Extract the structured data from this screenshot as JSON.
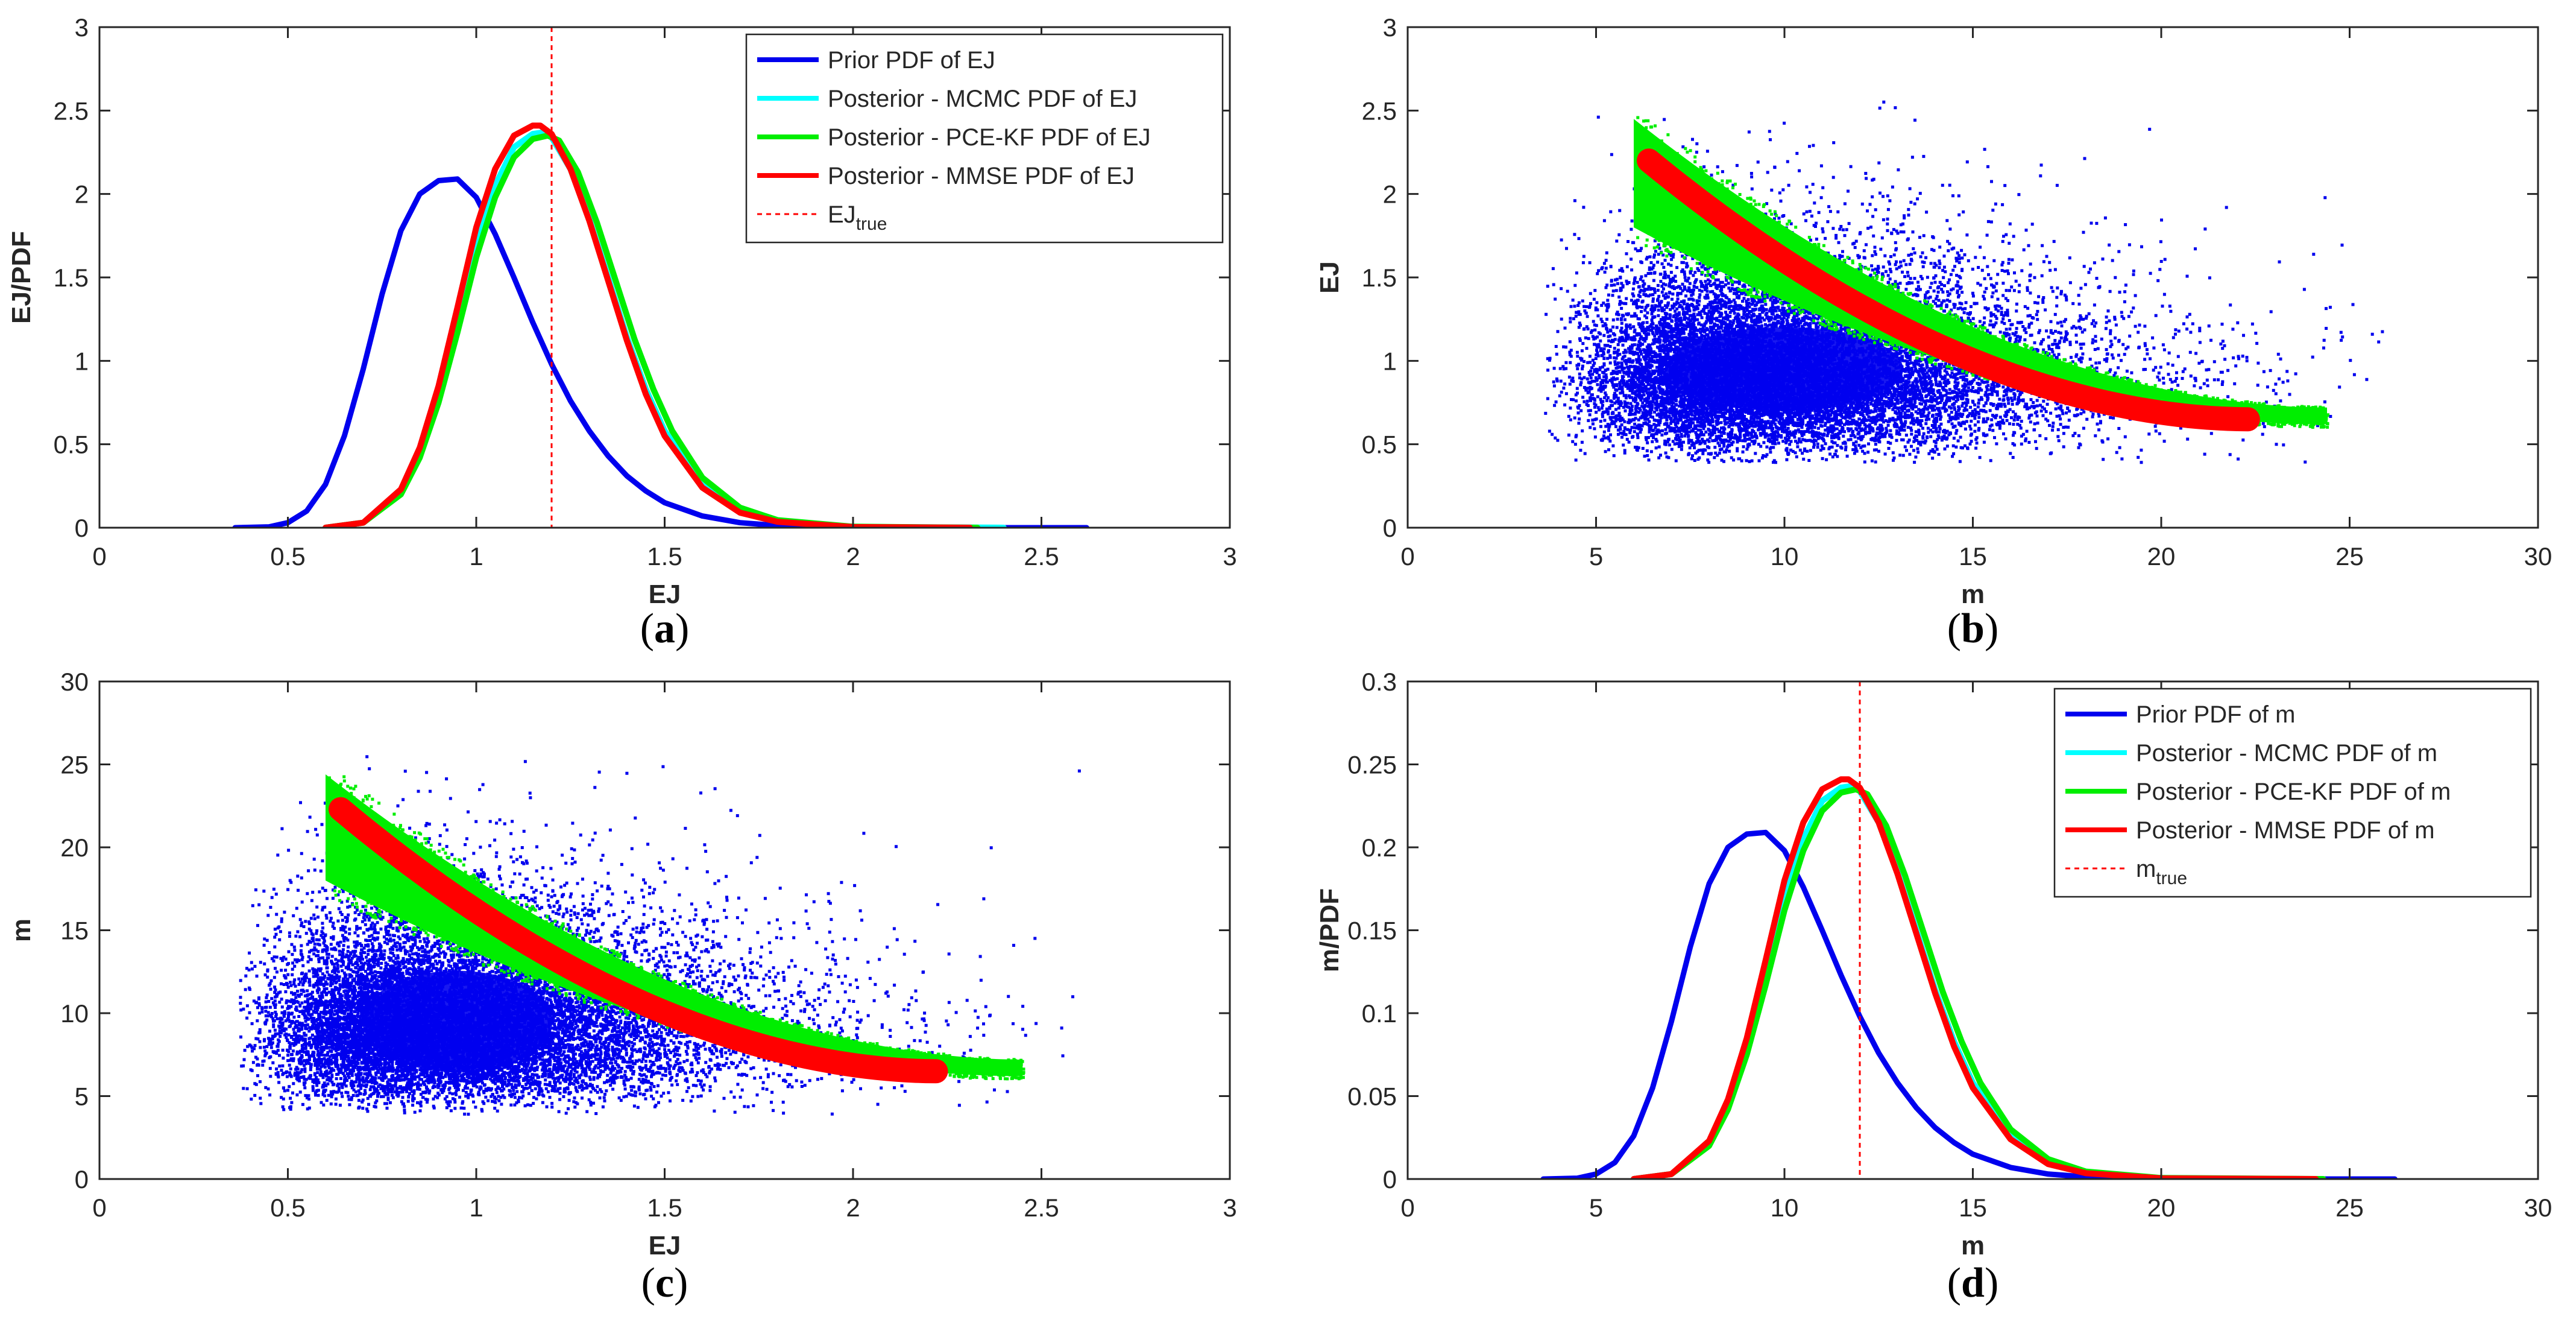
{
  "chart_data": [
    {
      "id": "a",
      "type": "line",
      "caption_letter": "a",
      "xlabel": "EJ",
      "ylabel": "EJ/PDF",
      "xlim": [
        0,
        3
      ],
      "ylim": [
        0,
        3
      ],
      "xticks": [
        "0",
        "0.5",
        "1",
        "1.5",
        "2",
        "2.5",
        "3"
      ],
      "yticks": [
        "0",
        "0.5",
        "1",
        "1.5",
        "2",
        "2.5",
        "3"
      ],
      "true_value": 1.2,
      "legend_position": "top-right",
      "legend": [
        {
          "label": "Prior PDF of EJ",
          "color": "#0000ee",
          "style": "solid"
        },
        {
          "label": "Posterior - MCMC PDF of EJ",
          "color": "#00ffff",
          "style": "solid"
        },
        {
          "label": "Posterior - PCE-KF PDF of EJ",
          "color": "#00ee00",
          "style": "solid"
        },
        {
          "label": "Posterior - MMSE PDF of EJ",
          "color": "#ff0000",
          "style": "solid"
        },
        {
          "label": "EJ",
          "sub": "true",
          "color": "#ff0000",
          "style": "dashed"
        }
      ],
      "series": [
        {
          "name": "Prior PDF of EJ",
          "color": "#0000ee",
          "x": [
            0.36,
            0.45,
            0.5,
            0.55,
            0.6,
            0.65,
            0.7,
            0.75,
            0.8,
            0.85,
            0.9,
            0.95,
            1.0,
            1.05,
            1.1,
            1.15,
            1.2,
            1.25,
            1.3,
            1.35,
            1.4,
            1.45,
            1.5,
            1.6,
            1.7,
            1.8,
            1.9,
            2.0,
            2.2,
            2.4,
            2.62
          ],
          "y": [
            0,
            0.005,
            0.03,
            0.1,
            0.26,
            0.55,
            0.95,
            1.4,
            1.78,
            2.0,
            2.08,
            2.09,
            1.98,
            1.76,
            1.5,
            1.23,
            0.98,
            0.76,
            0.58,
            0.43,
            0.31,
            0.22,
            0.15,
            0.07,
            0.03,
            0.013,
            0.006,
            0.003,
            0.001,
            0,
            0
          ]
        },
        {
          "name": "Posterior - MCMC PDF of EJ",
          "color": "#00ffff",
          "x": [
            0.6,
            0.7,
            0.8,
            0.85,
            0.9,
            0.95,
            1.0,
            1.05,
            1.1,
            1.15,
            1.18,
            1.2,
            1.25,
            1.3,
            1.35,
            1.4,
            1.45,
            1.5,
            1.6,
            1.7,
            1.8,
            2.0,
            2.4
          ],
          "y": [
            0,
            0.03,
            0.22,
            0.45,
            0.8,
            1.25,
            1.7,
            2.05,
            2.28,
            2.36,
            2.37,
            2.34,
            2.15,
            1.85,
            1.5,
            1.14,
            0.83,
            0.58,
            0.26,
            0.11,
            0.04,
            0.005,
            0
          ]
        },
        {
          "name": "Posterior - PCE-KF PDF of EJ",
          "color": "#00ee00",
          "x": [
            0.6,
            0.7,
            0.8,
            0.85,
            0.9,
            0.95,
            1.0,
            1.05,
            1.1,
            1.15,
            1.19,
            1.22,
            1.27,
            1.32,
            1.37,
            1.42,
            1.47,
            1.52,
            1.6,
            1.7,
            1.8,
            2.0,
            2.33
          ],
          "y": [
            0,
            0.03,
            0.2,
            0.42,
            0.75,
            1.17,
            1.62,
            1.98,
            2.22,
            2.33,
            2.35,
            2.32,
            2.13,
            1.83,
            1.48,
            1.13,
            0.83,
            0.58,
            0.3,
            0.12,
            0.045,
            0.006,
            0
          ]
        },
        {
          "name": "Posterior - MMSE PDF of EJ",
          "color": "#ff0000",
          "x": [
            0.6,
            0.7,
            0.8,
            0.85,
            0.9,
            0.95,
            1.0,
            1.05,
            1.1,
            1.15,
            1.17,
            1.2,
            1.25,
            1.3,
            1.35,
            1.4,
            1.45,
            1.5,
            1.6,
            1.7,
            1.8,
            2.0,
            2.31
          ],
          "y": [
            0,
            0.03,
            0.23,
            0.48,
            0.85,
            1.32,
            1.8,
            2.15,
            2.35,
            2.41,
            2.41,
            2.36,
            2.15,
            1.84,
            1.48,
            1.12,
            0.8,
            0.55,
            0.24,
            0.09,
            0.035,
            0.004,
            0
          ]
        }
      ]
    },
    {
      "id": "b",
      "type": "scatter",
      "caption_letter": "b",
      "xlabel": "m",
      "ylabel": "EJ",
      "xlim": [
        0,
        30
      ],
      "ylim": [
        0,
        3
      ],
      "xticks": [
        "0",
        "5",
        "10",
        "15",
        "20",
        "25",
        "30"
      ],
      "yticks": [
        "0",
        "0.5",
        "1",
        "1.5",
        "2",
        "2.5",
        "3"
      ],
      "series": [
        {
          "name": "Prior samples",
          "color": "#0000ee",
          "cloud_center": [
            10,
            0.95
          ],
          "cloud_spread": [
            3.5,
            0.28
          ],
          "extent_x": [
            3.6,
            26
          ],
          "extent_y": [
            0.4,
            2.6
          ]
        },
        {
          "name": "Posterior - PCE-KF samples",
          "color": "#00ee00",
          "band_x": [
            6.0,
            24.4
          ],
          "band_top_start": 2.45,
          "band_top_end": 0.72,
          "band_bottom_start": 1.8,
          "band_bottom_end": 0.62
        },
        {
          "name": "Posterior - MMSE samples",
          "color": "#ff0000",
          "curve_x": [
            6.4,
            22.3
          ],
          "curve_y_start": 2.2,
          "curve_y_end": 0.65
        }
      ]
    },
    {
      "id": "c",
      "type": "scatter",
      "caption_letter": "c",
      "xlabel": "EJ",
      "ylabel": "m",
      "xlim": [
        0,
        3
      ],
      "ylim": [
        0,
        30
      ],
      "xticks": [
        "0",
        "0.5",
        "1",
        "1.5",
        "2",
        "2.5",
        "3"
      ],
      "yticks": [
        "0",
        "5",
        "10",
        "15",
        "20",
        "25",
        "30"
      ],
      "series": [
        {
          "name": "Prior samples",
          "color": "#0000ee",
          "cloud_center": [
            0.95,
            9.5
          ],
          "cloud_spread": [
            0.28,
            3.4
          ],
          "extent_x": [
            0.37,
            2.6
          ],
          "extent_y": [
            4,
            26
          ]
        },
        {
          "name": "Posterior - PCE-KF samples",
          "color": "#00ee00",
          "band_x": [
            0.6,
            2.45
          ],
          "band_top_start": 24.4,
          "band_top_end": 7.2,
          "band_bottom_start": 18.0,
          "band_bottom_end": 6.2
        },
        {
          "name": "Posterior - MMSE samples",
          "color": "#ff0000",
          "curve_x": [
            0.64,
            2.22
          ],
          "curve_y_start": 22.3,
          "curve_y_end": 6.5
        }
      ]
    },
    {
      "id": "d",
      "type": "line",
      "caption_letter": "d",
      "xlabel": "m",
      "ylabel": "m/PDF",
      "xlim": [
        0,
        30
      ],
      "ylim": [
        0,
        0.3
      ],
      "xticks": [
        "0",
        "5",
        "10",
        "15",
        "20",
        "25",
        "30"
      ],
      "yticks": [
        "0",
        "0.05",
        "0.1",
        "0.15",
        "0.2",
        "0.25",
        "0.3"
      ],
      "true_value": 12,
      "legend_position": "top-right",
      "legend": [
        {
          "label": "Prior PDF of m",
          "color": "#0000ee",
          "style": "solid"
        },
        {
          "label": "Posterior - MCMC PDF of m",
          "color": "#00ffff",
          "style": "solid"
        },
        {
          "label": "Posterior - PCE-KF PDF of m",
          "color": "#00ee00",
          "style": "solid"
        },
        {
          "label": "Posterior - MMSE PDF of m",
          "color": "#ff0000",
          "style": "solid"
        },
        {
          "label": "m",
          "sub": "true",
          "color": "#ff0000",
          "style": "dashed"
        }
      ],
      "series": [
        {
          "name": "Prior PDF of m",
          "color": "#0000ee",
          "x": [
            3.6,
            4.5,
            5,
            5.5,
            6,
            6.5,
            7,
            7.5,
            8,
            8.5,
            9,
            9.5,
            10,
            10.5,
            11,
            11.5,
            12,
            12.5,
            13,
            13.5,
            14,
            14.5,
            15,
            16,
            17,
            18,
            19,
            20,
            22,
            24,
            26.2
          ],
          "y": [
            0,
            0.0005,
            0.003,
            0.01,
            0.026,
            0.055,
            0.095,
            0.14,
            0.178,
            0.2,
            0.208,
            0.209,
            0.198,
            0.176,
            0.15,
            0.123,
            0.098,
            0.076,
            0.058,
            0.043,
            0.031,
            0.022,
            0.015,
            0.007,
            0.003,
            0.0013,
            0.0006,
            0.0003,
            0.0001,
            0,
            0
          ]
        },
        {
          "name": "Posterior - MCMC PDF of m",
          "color": "#00ffff",
          "x": [
            6,
            7,
            8,
            8.5,
            9,
            9.5,
            10,
            10.5,
            11,
            11.5,
            11.8,
            12,
            12.5,
            13,
            13.5,
            14,
            14.5,
            15,
            16,
            17,
            18,
            20,
            24
          ],
          "y": [
            0,
            0.003,
            0.022,
            0.045,
            0.08,
            0.125,
            0.17,
            0.205,
            0.228,
            0.236,
            0.237,
            0.234,
            0.215,
            0.185,
            0.15,
            0.114,
            0.083,
            0.058,
            0.026,
            0.011,
            0.004,
            0.0005,
            0
          ]
        },
        {
          "name": "Posterior - PCE-KF PDF of m",
          "color": "#00ee00",
          "x": [
            6,
            7,
            8,
            8.5,
            9,
            9.5,
            10,
            10.5,
            11,
            11.5,
            11.9,
            12.2,
            12.7,
            13.2,
            13.7,
            14.2,
            14.7,
            15.2,
            16,
            17,
            18,
            20,
            24.3
          ],
          "y": [
            0,
            0.003,
            0.02,
            0.042,
            0.075,
            0.117,
            0.162,
            0.198,
            0.222,
            0.233,
            0.235,
            0.232,
            0.213,
            0.183,
            0.148,
            0.113,
            0.083,
            0.058,
            0.03,
            0.012,
            0.0045,
            0.0006,
            0
          ]
        },
        {
          "name": "Posterior - MMSE PDF of m",
          "color": "#ff0000",
          "x": [
            6,
            7,
            8,
            8.5,
            9,
            9.5,
            10,
            10.5,
            11,
            11.5,
            11.7,
            12,
            12.5,
            13,
            13.5,
            14,
            14.5,
            15,
            16,
            17,
            18,
            20,
            24.1
          ],
          "y": [
            0,
            0.003,
            0.023,
            0.048,
            0.085,
            0.132,
            0.18,
            0.215,
            0.235,
            0.241,
            0.241,
            0.236,
            0.215,
            0.184,
            0.148,
            0.112,
            0.08,
            0.055,
            0.024,
            0.009,
            0.0035,
            0.0004,
            0
          ]
        }
      ]
    }
  ]
}
